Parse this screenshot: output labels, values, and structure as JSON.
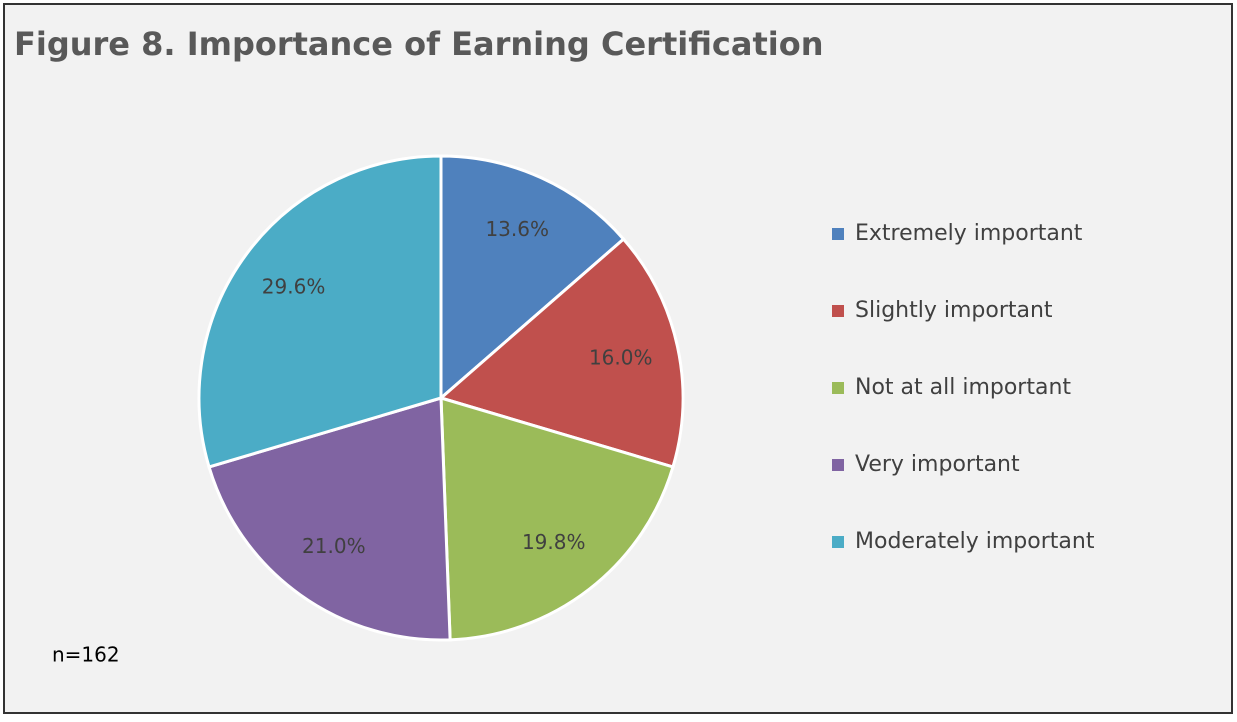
{
  "chart_data": {
    "type": "pie",
    "title": "Figure 8. Importance of Earning Certification",
    "categories": [
      "Extremely important",
      "Slightly important",
      "Not at all important",
      "Very important",
      "Moderately important"
    ],
    "values": [
      13.6,
      16.0,
      19.8,
      21.0,
      29.6
    ],
    "value_labels": [
      "13.6%",
      "16.0%",
      "19.8%",
      "21.0%",
      "29.6%"
    ],
    "colors": [
      "#4f81bd",
      "#c0504d",
      "#9bbb59",
      "#8064a2",
      "#4bacc6"
    ],
    "annotation": "n=162",
    "legend": "right"
  }
}
